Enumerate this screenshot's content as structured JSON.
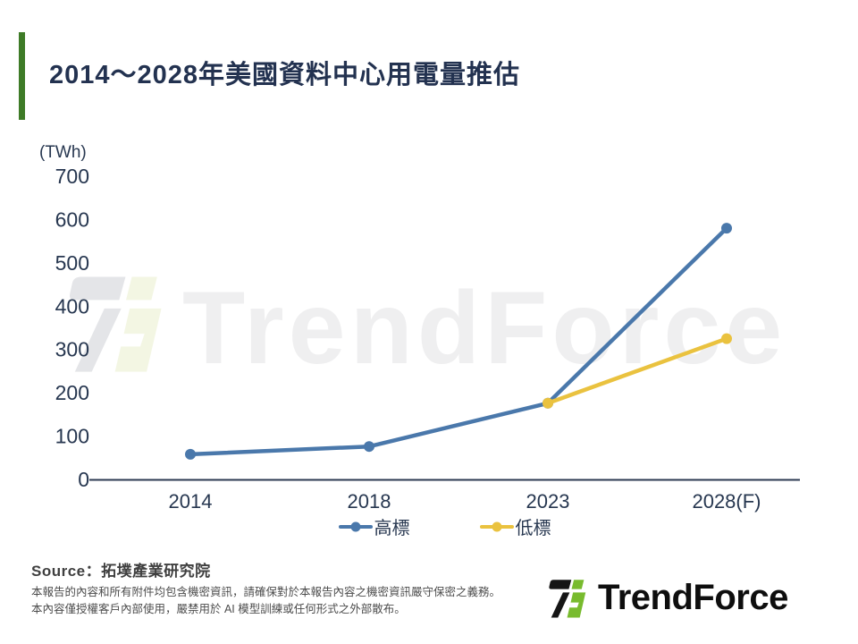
{
  "header": {
    "title": "2014～2028年美國資料中心用電量推估"
  },
  "chart_data": {
    "type": "line",
    "title": "2014～2028年美國資料中心用電量推估",
    "unit_label": "(TWh)",
    "categories": [
      "2014",
      "2018",
      "2023",
      "2028(F)"
    ],
    "series": [
      {
        "name": "高標",
        "color": "#4A78AB",
        "values": [
          58,
          76,
          176,
          580
        ]
      },
      {
        "name": "低標",
        "color": "#EAC23F",
        "values": [
          null,
          null,
          176,
          325
        ]
      }
    ],
    "ylim": [
      0,
      700
    ],
    "yticks": [
      0,
      100,
      200,
      300,
      400,
      500,
      600,
      700
    ],
    "grid": false,
    "legend_position": "bottom",
    "axis_color": "#2B3A52"
  },
  "watermark": {
    "text": "TrendForce"
  },
  "footer": {
    "source": "Source：拓墣產業研究院",
    "disclaimers": [
      "本報告的內容和所有附件均包含機密資訊，請確保對於本報告內容之機密資訊嚴守保密之義務。",
      "本內容僅授權客戶內部使用，嚴禁用於 AI 模型訓練或任何形式之外部散布。"
    ],
    "logo_text": "TrendForce"
  },
  "colors": {
    "accent_green": "#3E7B27",
    "title_text": "#233250",
    "axis_text": "#273750",
    "series_high_blue": "#4A78AB",
    "series_low_yellow": "#EAC23F",
    "logo_green": "#78BB2E",
    "logo_black": "#151515",
    "watermark_gray": "#EFEFF0"
  }
}
